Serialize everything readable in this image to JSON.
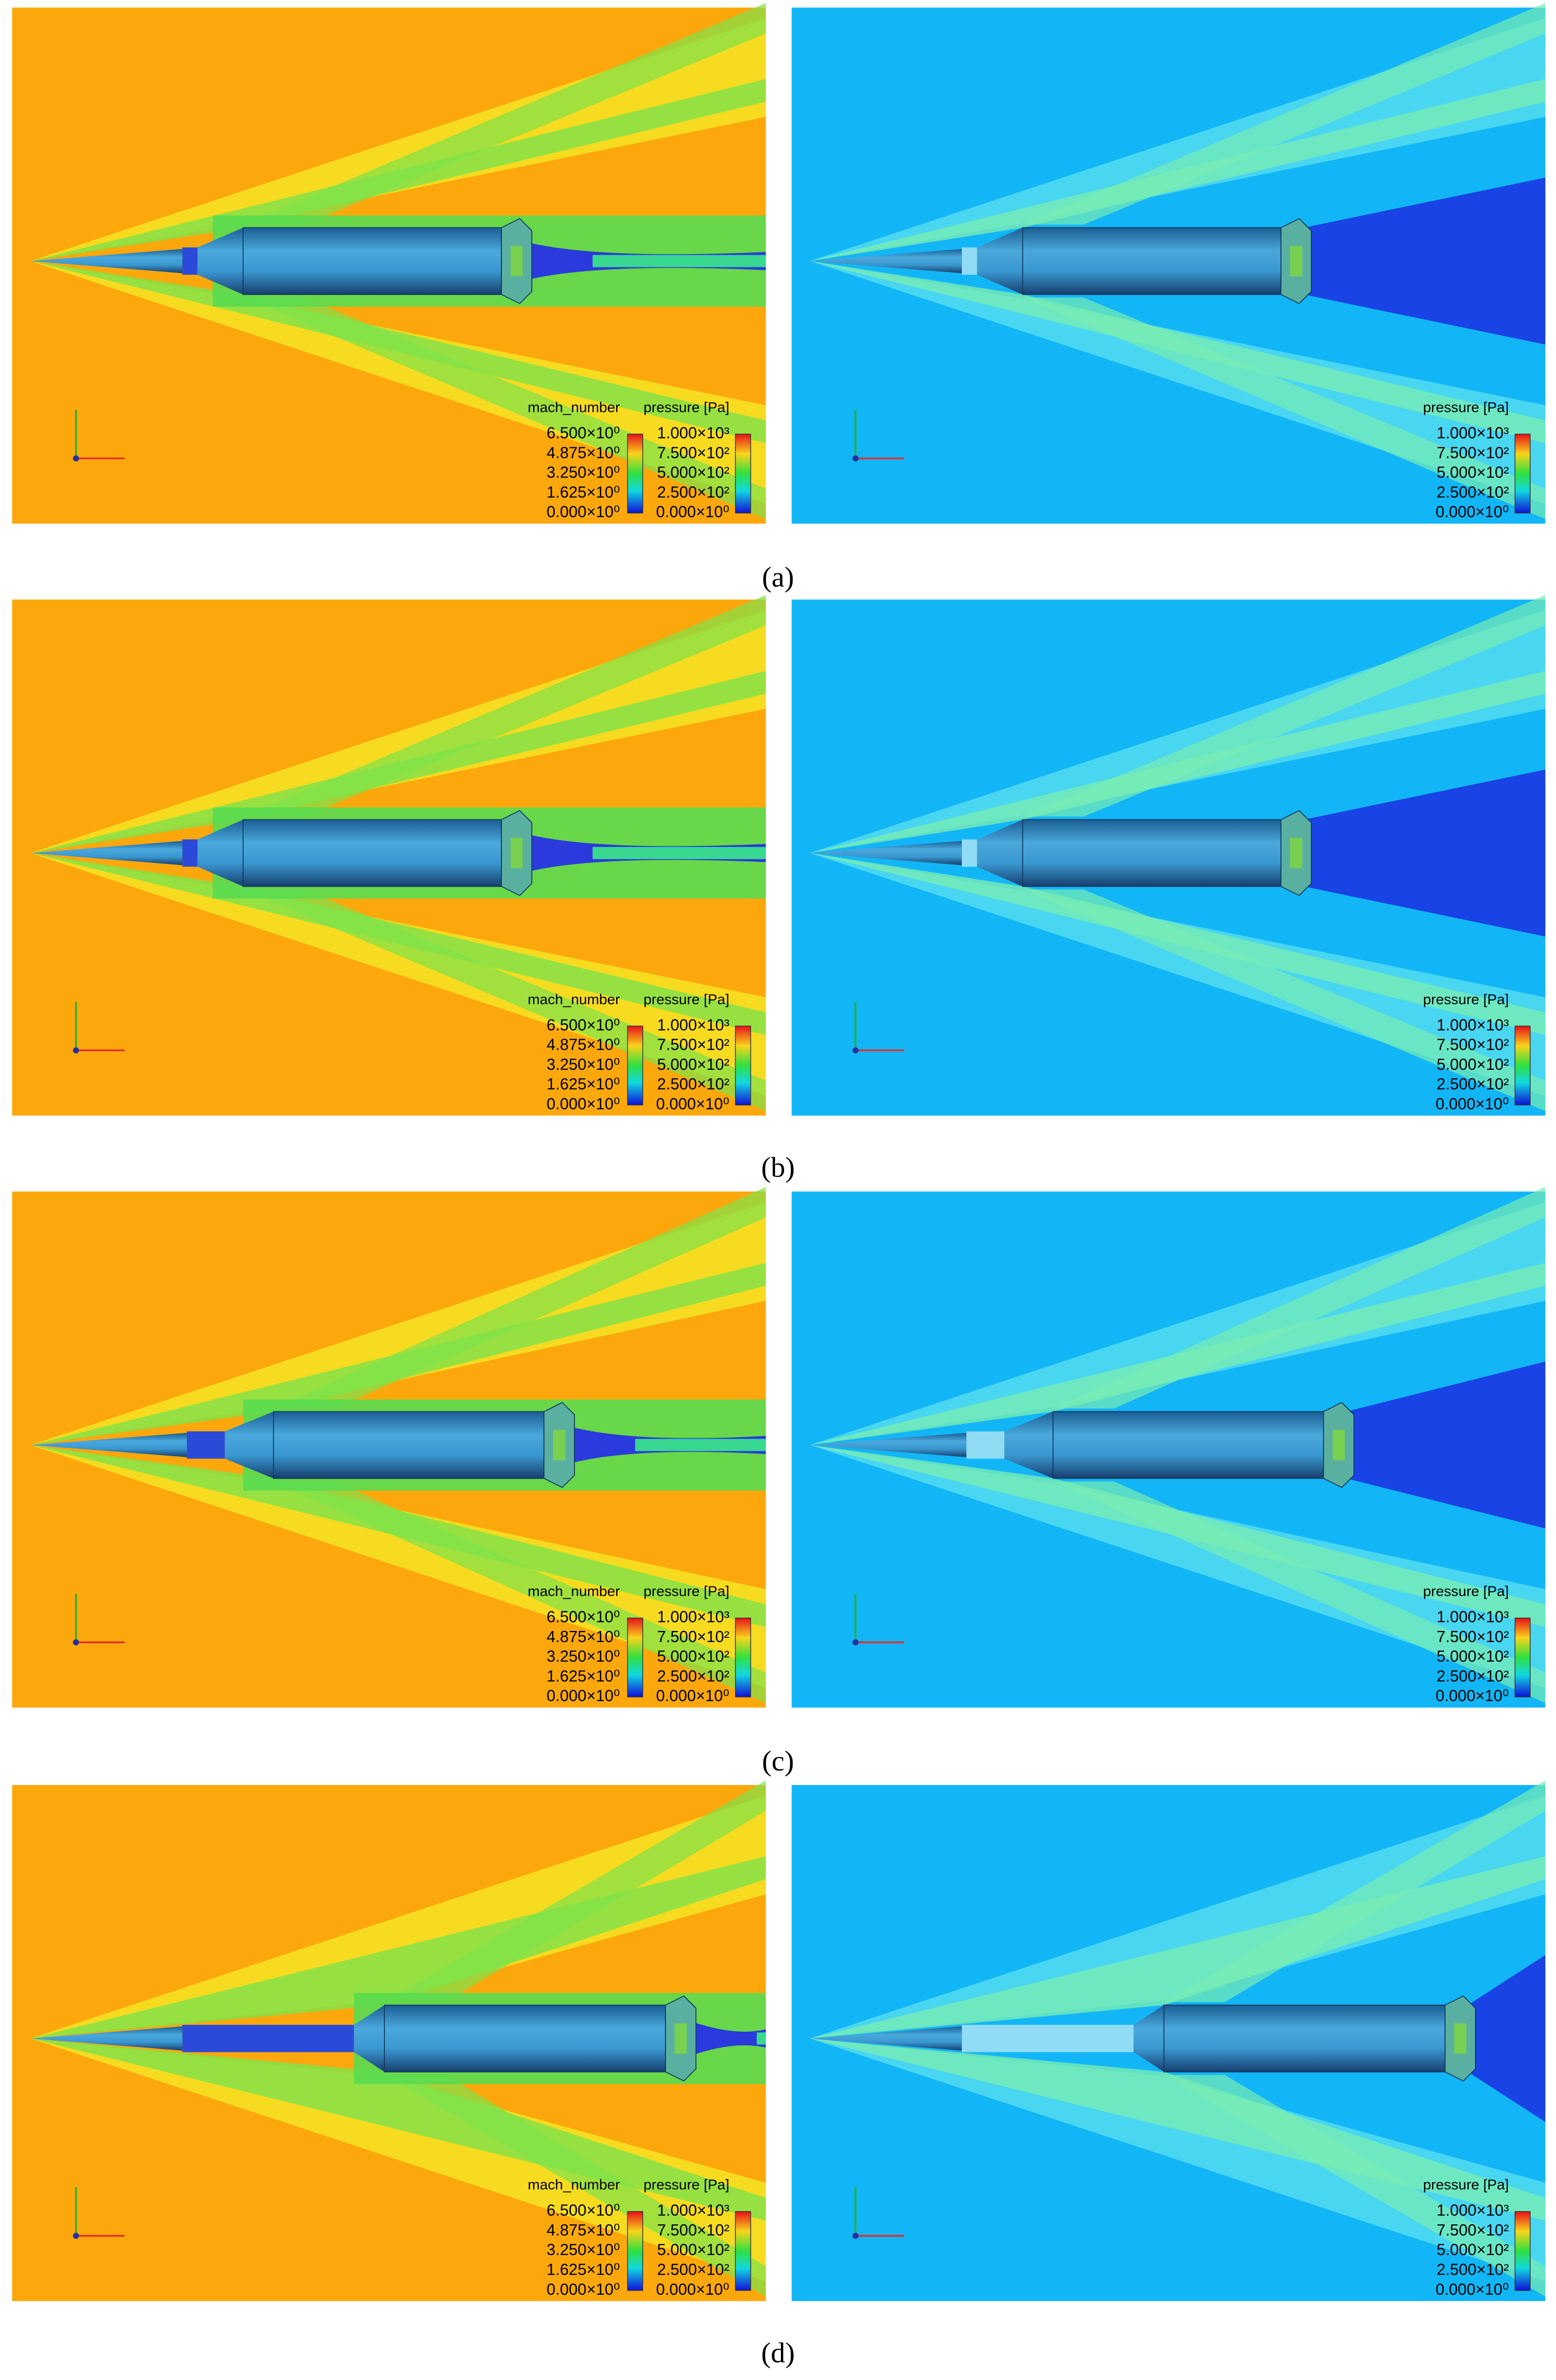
{
  "legends": {
    "mach_number": {
      "title": "mach_number",
      "ticks": [
        "6.500×10⁰",
        "4.875×10⁰",
        "3.250×10⁰",
        "1.625×10⁰",
        "0.000×10⁰"
      ]
    },
    "pressure": {
      "title": "pressure [Pa]",
      "ticks": [
        "1.000×10³",
        "7.500×10²",
        "5.000×10²",
        "2.500×10²",
        "0.000×10⁰"
      ]
    }
  },
  "panels": [
    {
      "label": "(a)"
    },
    {
      "label": "(b)"
    },
    {
      "label": "(c)"
    },
    {
      "label": "(d)"
    }
  ]
}
